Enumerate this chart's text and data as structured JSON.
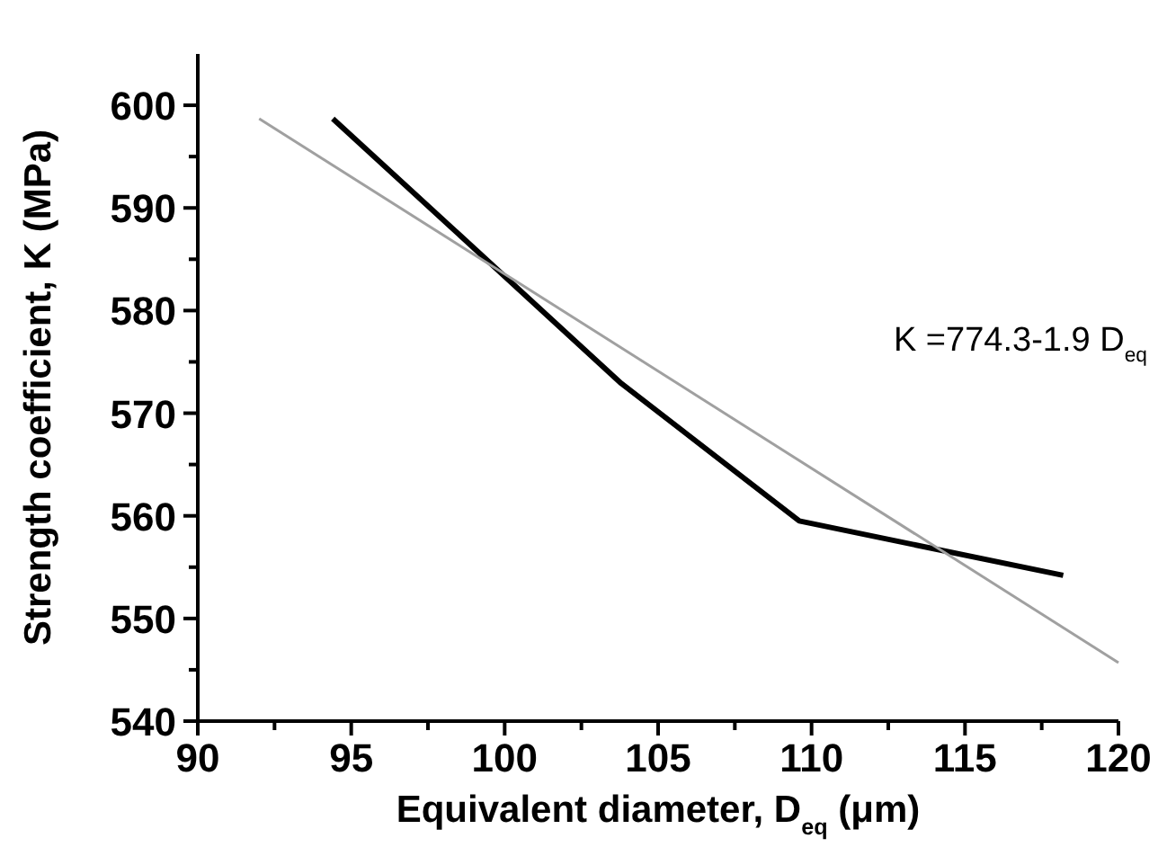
{
  "chart_data": {
    "type": "line",
    "xlabel": "Equivalent diameter, D$_{eq}$ (μm)",
    "ylabel": "Strength coefficient, K (MPa)",
    "series": [
      {
        "color": "#000000",
        "x": [
          94.4,
          103.8,
          109.6,
          118.2
        ],
        "values": [
          598.7,
          572.9,
          559.5,
          554.2
        ]
      },
      {
        "color": "#a0a0a0",
        "x": [
          92.0,
          120.0
        ],
        "values": [
          598.7,
          545.7
        ]
      }
    ],
    "annotations": [
      "K =774.3-1.9 D$_{eq}$"
    ],
    "xlim": [
      90,
      120
    ],
    "ylim": [
      540,
      605
    ],
    "xticks": [
      90,
      {
        "value": 92.5,
        "label": null
      },
      95,
      {
        "value": 97.5,
        "label": null
      },
      100,
      {
        "value": 102.5,
        "label": null
      },
      105,
      {
        "value": 107.5,
        "label": null
      },
      110,
      {
        "value": 112.5,
        "label": null
      },
      115,
      {
        "value": 117.5,
        "label": null
      },
      120
    ],
    "yticks": [
      540,
      {
        "value": 545,
        "label": null
      },
      550,
      {
        "value": 555,
        "label": null
      },
      560,
      {
        "value": 565,
        "label": null
      },
      570,
      {
        "value": 575,
        "label": null
      },
      580,
      {
        "value": 585,
        "label": null
      },
      590,
      {
        "value": 595,
        "label": null
      },
      600
    ],
    "grid": false,
    "marker": "none",
    "line_style": "solid"
  }
}
